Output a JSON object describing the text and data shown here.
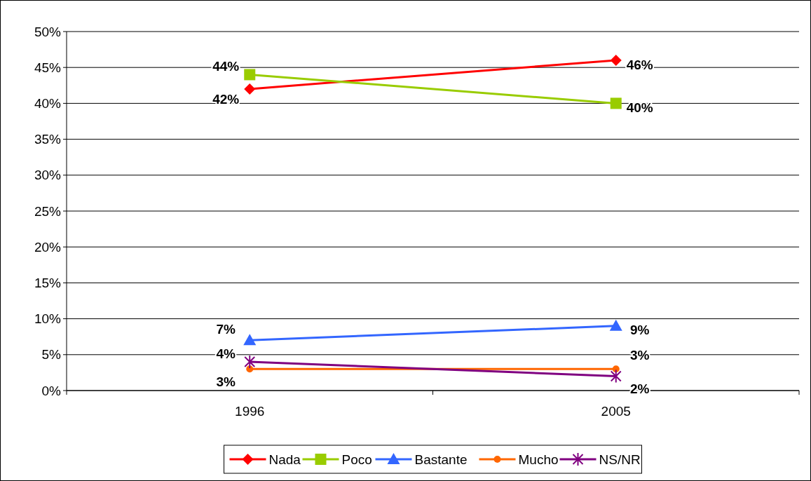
{
  "chart_data": {
    "type": "line",
    "categories": [
      "1996",
      "2005"
    ],
    "series": [
      {
        "name": "Nada",
        "color": "#ff0000",
        "marker": "diamond",
        "values": [
          42,
          46
        ],
        "value_labels": [
          "42%",
          "46%"
        ]
      },
      {
        "name": "Poco",
        "color": "#99cc00",
        "marker": "square",
        "values": [
          44,
          40
        ],
        "value_labels": [
          "44%",
          "40%"
        ]
      },
      {
        "name": "Bastante",
        "color": "#3366ff",
        "marker": "triangle",
        "values": [
          7,
          9
        ],
        "value_labels": [
          "7%",
          "9%"
        ]
      },
      {
        "name": "Mucho",
        "color": "#ff6600",
        "marker": "circle",
        "values": [
          3,
          3
        ],
        "value_labels": [
          "3%",
          "3%"
        ]
      },
      {
        "name": "NS/NR",
        "color": "#800080",
        "marker": "cross",
        "values": [
          4,
          2
        ],
        "value_labels": [
          "4%",
          "2%"
        ]
      }
    ],
    "ylim": [
      0,
      50
    ],
    "yticks": [
      {
        "value": 0,
        "label": "0%"
      },
      {
        "value": 5,
        "label": "5%"
      },
      {
        "value": 10,
        "label": "10%"
      },
      {
        "value": 15,
        "label": "15%"
      },
      {
        "value": 20,
        "label": "20%"
      },
      {
        "value": 25,
        "label": "25%"
      },
      {
        "value": 30,
        "label": "30%"
      },
      {
        "value": 35,
        "label": "35%"
      },
      {
        "value": 40,
        "label": "40%"
      },
      {
        "value": 45,
        "label": "45%"
      },
      {
        "value": 50,
        "label": "50%"
      }
    ],
    "grid": "y",
    "legend": "bottom"
  }
}
